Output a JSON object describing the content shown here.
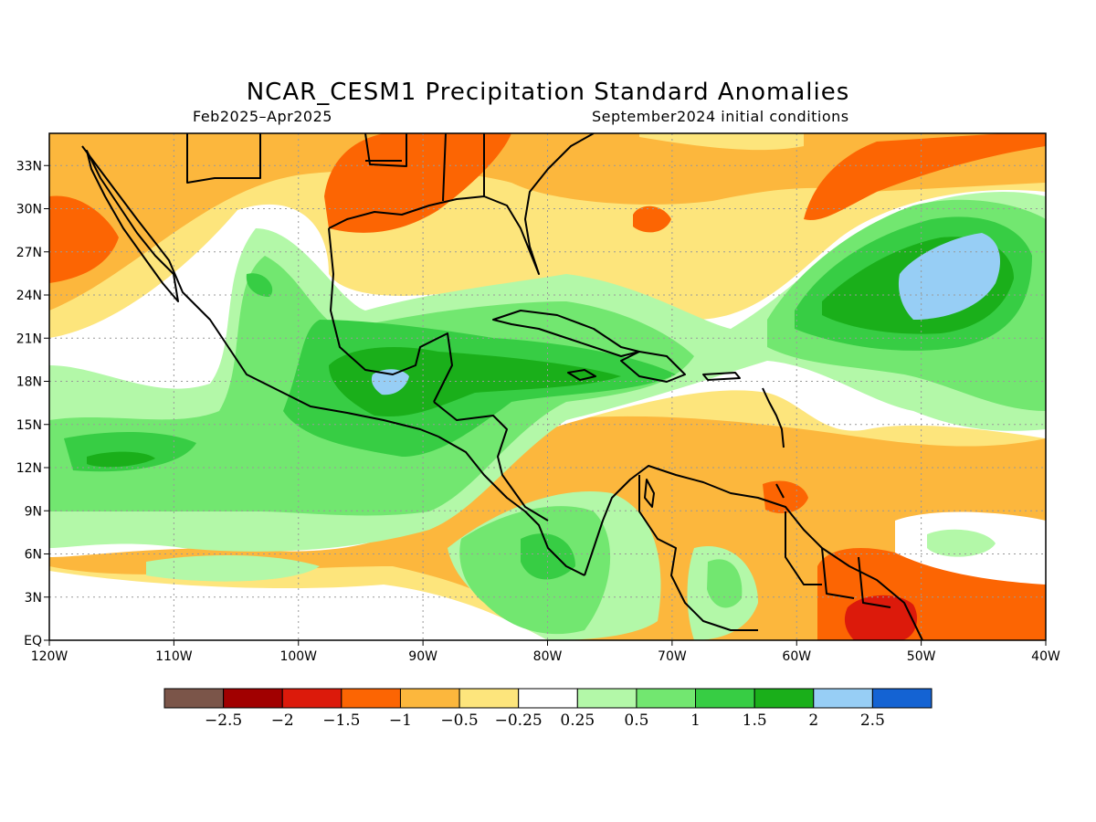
{
  "title": "NCAR_CESM1 Precipitation Standard Anomalies",
  "subtitle_left": "Feb2025–Apr2025",
  "subtitle_right": "September2024 initial conditions",
  "axes": {
    "lon_labels": [
      "120W",
      "110W",
      "100W",
      "90W",
      "80W",
      "70W",
      "60W",
      "50W",
      "40W"
    ],
    "lat_labels": [
      "EQ",
      "3N",
      "6N",
      "9N",
      "12N",
      "15N",
      "18N",
      "21N",
      "24N",
      "27N",
      "30N",
      "33N"
    ]
  },
  "colorbar": {
    "colors": [
      "#7b5549",
      "#a10000",
      "#dc1a0b",
      "#fc6503",
      "#fcb73d",
      "#fde57c",
      "#ffffff",
      "#b3f8a8",
      "#72e770",
      "#37cd44",
      "#1aaf1a",
      "#97cef5",
      "#1463d3"
    ],
    "labels": [
      "−2.5",
      "−2",
      "−1.5",
      "−1",
      "−0.5",
      "−0.25",
      "0.25",
      "0.5",
      "1",
      "1.5",
      "2",
      "2.5"
    ]
  },
  "map_colors": {
    "strong_dry": "#dc1a0b",
    "dry": "#fc6503",
    "moderate_dry": "#fcb73d",
    "weak_dry": "#fde57c",
    "neutral": "#ffffff",
    "weak_wet": "#b3f8a8",
    "moderate_wet": "#72e770",
    "wet": "#37cd44",
    "very_wet": "#1aaf1a",
    "extreme_wet": "#97cef5"
  }
}
